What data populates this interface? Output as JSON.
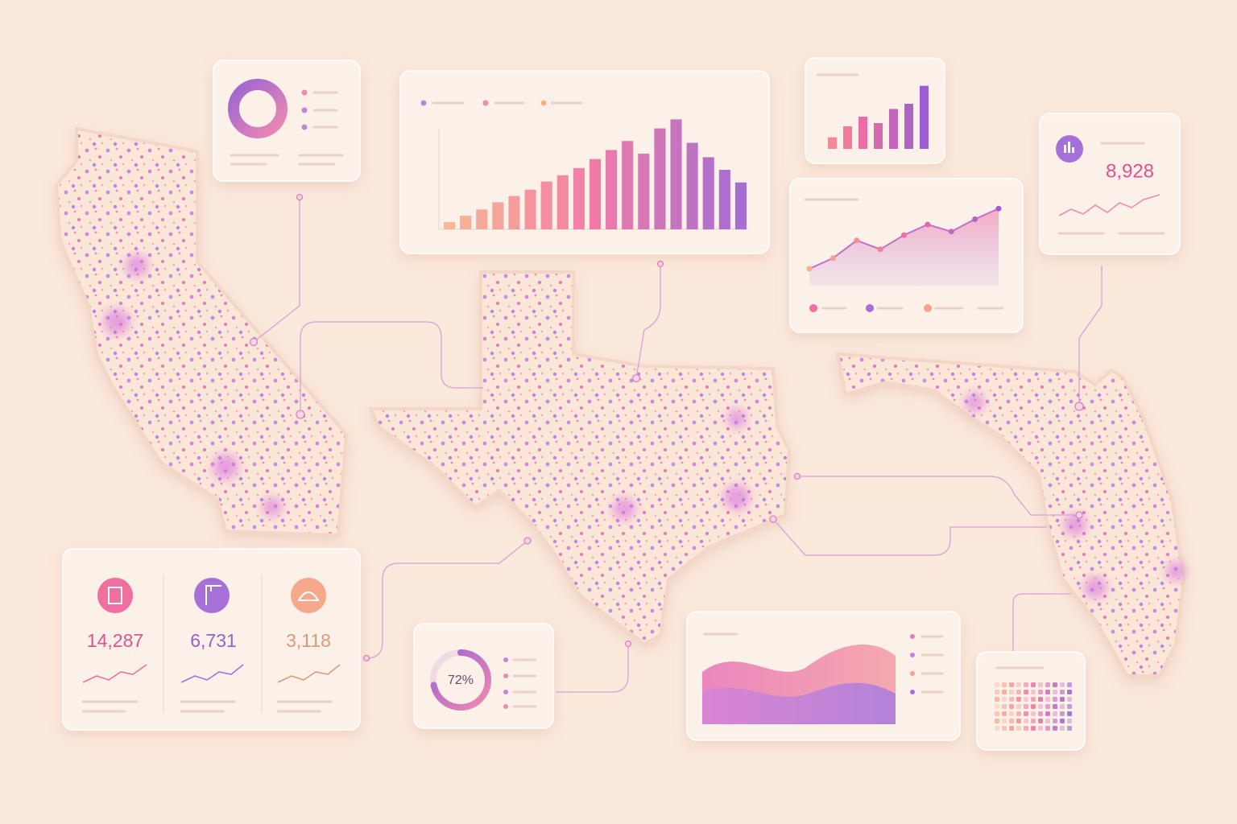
{
  "stats": [
    "14,287",
    "6,731",
    "3,118"
  ],
  "highlight": "8,928",
  "donut": {
    "value": 72,
    "label": "72%"
  },
  "bar_chart": {
    "values": [
      8,
      15,
      22,
      30,
      37,
      44,
      53,
      60,
      68,
      78,
      88,
      98,
      84,
      112,
      122,
      96,
      80,
      66,
      52
    ]
  },
  "mini_bars": {
    "values": [
      18,
      35,
      50,
      40,
      62,
      70,
      98
    ]
  },
  "line_chart": {
    "values": [
      10,
      22,
      42,
      32,
      48,
      60,
      52,
      66,
      78
    ]
  }
}
